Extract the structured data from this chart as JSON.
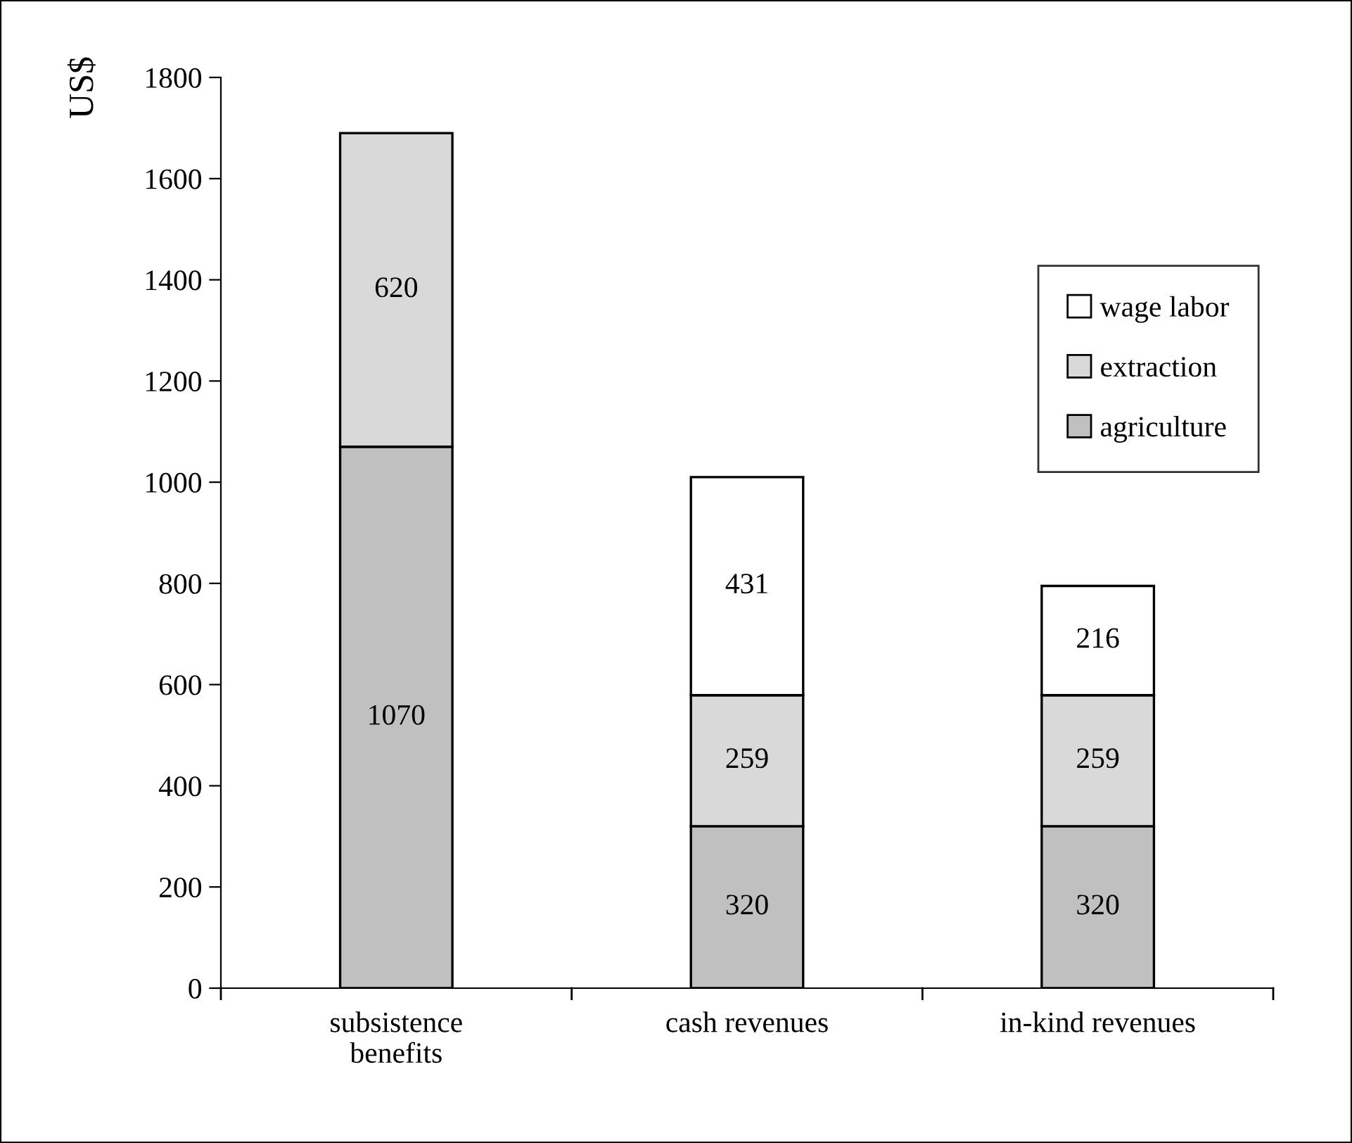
{
  "chart_data": {
    "type": "bar",
    "stacked": true,
    "ylabel": "US$",
    "categories": [
      "subsistence\nbenefits",
      "cash revenues",
      "in-kind revenues"
    ],
    "series": [
      {
        "name": "agriculture",
        "color": "#c0c0c0",
        "values": [
          1070,
          320,
          320
        ]
      },
      {
        "name": "extraction",
        "color": "#d9d9d9",
        "values": [
          620,
          259,
          259
        ]
      },
      {
        "name": "wage labor",
        "color": "#ffffff",
        "values": [
          null,
          431,
          216
        ]
      }
    ],
    "ylim": [
      0,
      1800
    ],
    "yticks": [
      0,
      200,
      400,
      600,
      800,
      1000,
      1200,
      1400,
      1600,
      1800
    ],
    "data_labels": true,
    "grid": false,
    "legend": "right"
  }
}
